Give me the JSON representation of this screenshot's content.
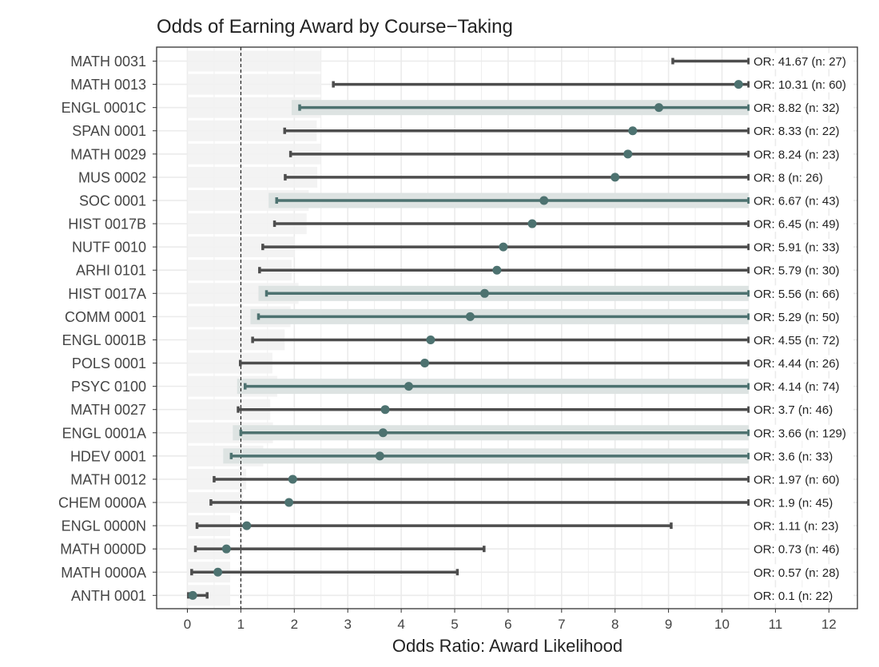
{
  "chart_data": {
    "type": "forest",
    "title": "Odds of Earning Award by Course−Taking",
    "xlabel": "Odds Ratio: Award Likelihood",
    "ylabel": "",
    "xlim": [
      0,
      12
    ],
    "x_ticks": [
      0,
      1,
      2,
      3,
      4,
      5,
      6,
      7,
      8,
      9,
      10,
      11,
      12
    ],
    "reference_line": 1,
    "grid": true,
    "colors": {
      "point": "#4d7270",
      "line_dark": "#4d4d4d",
      "line_teal": "#4d7270",
      "band": "#dde3e2",
      "reference": "#000000",
      "grid": "#ebebeb"
    },
    "rows": [
      {
        "course": "MATH 0031",
        "or": 41.67,
        "n": 27,
        "lower": 9.08,
        "upper": 10.5,
        "highlight": false,
        "label": "OR: 41.67 (n: 27)"
      },
      {
        "course": "MATH 0013",
        "or": 10.31,
        "n": 60,
        "lower": 2.73,
        "upper": 10.5,
        "highlight": false,
        "label": "OR: 10.31 (n: 60)"
      },
      {
        "course": "ENGL 0001C",
        "or": 8.82,
        "n": 32,
        "lower": 2.1,
        "upper": 10.5,
        "highlight": true,
        "label": "OR: 8.82 (n: 32)"
      },
      {
        "course": "SPAN 0001",
        "or": 8.33,
        "n": 22,
        "lower": 1.82,
        "upper": 10.5,
        "highlight": false,
        "label": "OR: 8.33 (n: 22)"
      },
      {
        "course": "MATH 0029",
        "or": 8.24,
        "n": 23,
        "lower": 1.93,
        "upper": 10.5,
        "highlight": false,
        "label": "OR: 8.24 (n: 23)"
      },
      {
        "course": "MUS 0002",
        "or": 8,
        "n": 26,
        "lower": 1.83,
        "upper": 10.5,
        "highlight": false,
        "label": "OR: 8 (n: 26)"
      },
      {
        "course": "SOC 0001",
        "or": 6.67,
        "n": 43,
        "lower": 1.67,
        "upper": 10.5,
        "highlight": true,
        "label": "OR: 6.67 (n: 43)"
      },
      {
        "course": "HIST 0017B",
        "or": 6.45,
        "n": 49,
        "lower": 1.63,
        "upper": 10.5,
        "highlight": false,
        "label": "OR: 6.45 (n: 49)"
      },
      {
        "course": "NUTF 0010",
        "or": 5.91,
        "n": 33,
        "lower": 1.41,
        "upper": 10.5,
        "highlight": false,
        "label": "OR: 5.91 (n: 33)"
      },
      {
        "course": "ARHI 0101",
        "or": 5.79,
        "n": 30,
        "lower": 1.35,
        "upper": 10.5,
        "highlight": false,
        "label": "OR: 5.79 (n: 30)"
      },
      {
        "course": "HIST 0017A",
        "or": 5.56,
        "n": 66,
        "lower": 1.48,
        "upper": 10.5,
        "highlight": true,
        "label": "OR: 5.56 (n: 66)"
      },
      {
        "course": "COMM 0001",
        "or": 5.29,
        "n": 50,
        "lower": 1.33,
        "upper": 10.5,
        "highlight": true,
        "label": "OR: 5.29 (n: 50)"
      },
      {
        "course": "ENGL 0001B",
        "or": 4.55,
        "n": 72,
        "lower": 1.22,
        "upper": 10.5,
        "highlight": false,
        "label": "OR: 4.55 (n: 72)"
      },
      {
        "course": "POLS 0001",
        "or": 4.44,
        "n": 26,
        "lower": 0.99,
        "upper": 10.5,
        "highlight": false,
        "label": "OR: 4.44 (n: 26)"
      },
      {
        "course": "PSYC 0100",
        "or": 4.14,
        "n": 74,
        "lower": 1.08,
        "upper": 10.5,
        "highlight": true,
        "label": "OR: 4.14 (n: 74)"
      },
      {
        "course": "MATH 0027",
        "or": 3.7,
        "n": 46,
        "lower": 0.95,
        "upper": 10.5,
        "highlight": false,
        "label": "OR: 3.7 (n: 46)"
      },
      {
        "course": "ENGL 0001A",
        "or": 3.66,
        "n": 129,
        "lower": 1.0,
        "upper": 10.5,
        "highlight": true,
        "label": "OR: 3.66 (n: 129)"
      },
      {
        "course": "HDEV 0001",
        "or": 3.6,
        "n": 33,
        "lower": 0.82,
        "upper": 10.5,
        "highlight": true,
        "label": "OR: 3.6 (n: 33)"
      },
      {
        "course": "MATH 0012",
        "or": 1.97,
        "n": 60,
        "lower": 0.5,
        "upper": 10.5,
        "highlight": false,
        "label": "OR: 1.97 (n: 60)"
      },
      {
        "course": "CHEM 0000A",
        "or": 1.9,
        "n": 45,
        "lower": 0.44,
        "upper": 10.5,
        "highlight": false,
        "label": "OR: 1.9 (n: 45)"
      },
      {
        "course": "ENGL 0000N",
        "or": 1.11,
        "n": 23,
        "lower": 0.18,
        "upper": 9.05,
        "highlight": false,
        "label": "OR: 1.11 (n: 23)"
      },
      {
        "course": "MATH 0000D",
        "or": 0.73,
        "n": 46,
        "lower": 0.15,
        "upper": 5.55,
        "highlight": false,
        "label": "OR: 0.73 (n: 46)"
      },
      {
        "course": "MATH 0000A",
        "or": 0.57,
        "n": 28,
        "lower": 0.08,
        "upper": 5.05,
        "highlight": false,
        "label": "OR: 0.57 (n: 28)"
      },
      {
        "course": "ANTH 0001",
        "or": 0.1,
        "n": 22,
        "lower": 0.02,
        "upper": 0.37,
        "highlight": false,
        "label": "OR: 0.1 (n: 22)"
      }
    ]
  }
}
